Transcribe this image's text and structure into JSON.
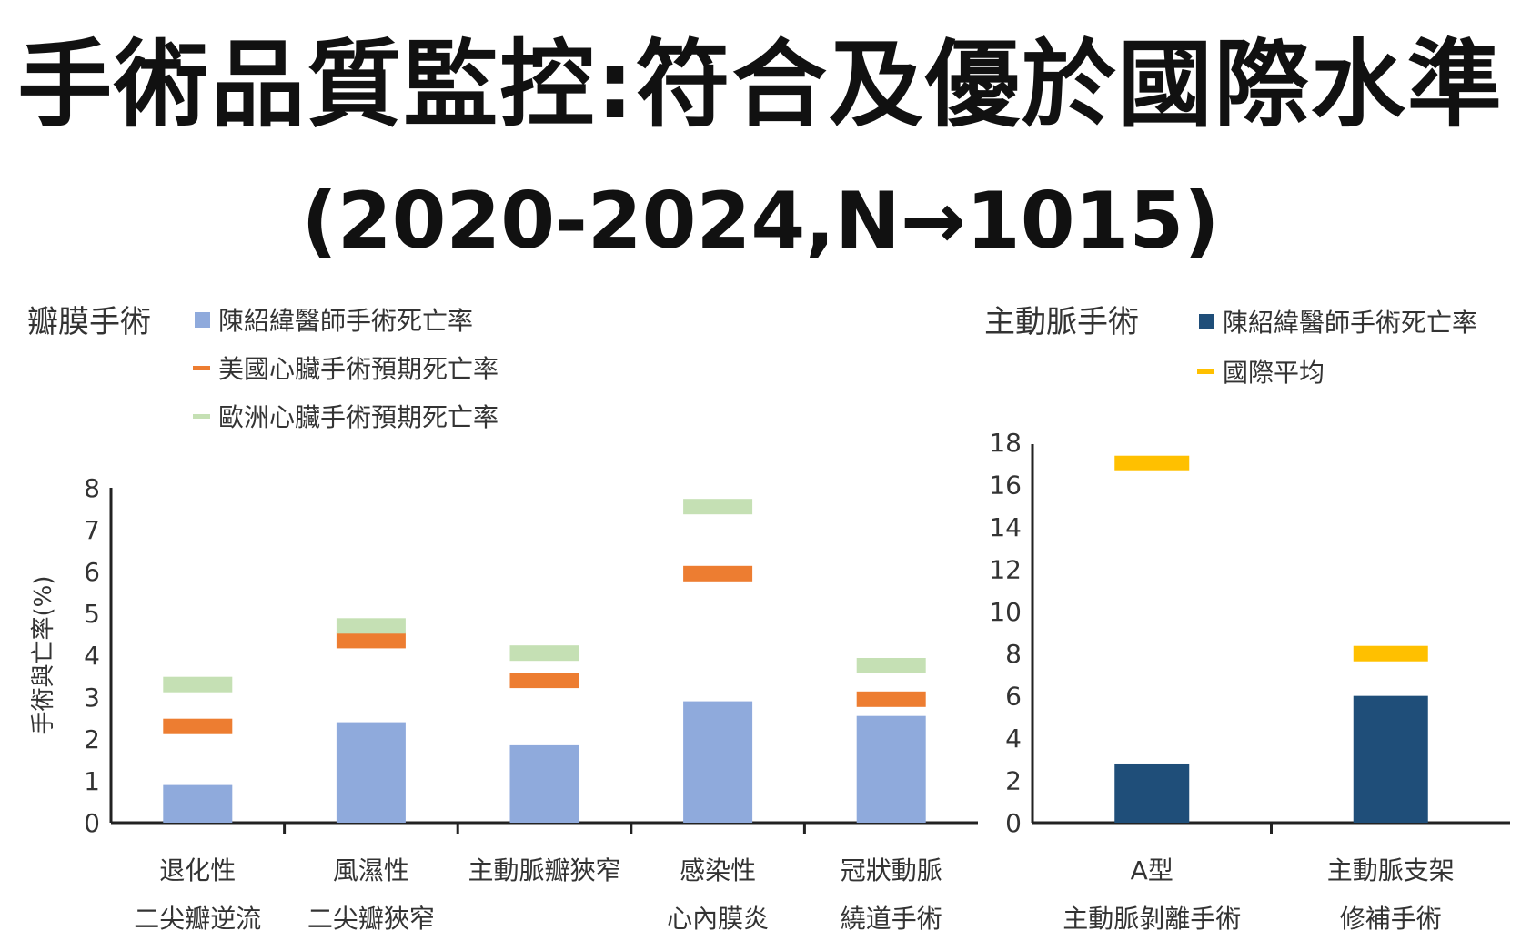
{
  "title": "手術品質監控:符合及優於國際水準",
  "subtitle": "(2020-2024,N→1015)",
  "chart_data": [
    {
      "type": "bar",
      "title": "瓣膜手術",
      "ylabel": "手術與亡率(%)",
      "ylim": [
        0,
        8
      ],
      "yticks": [
        0,
        1,
        2,
        3,
        4,
        5,
        6,
        7,
        8
      ],
      "categories": [
        [
          "退化性",
          "二尖瓣逆流"
        ],
        [
          "風濕性",
          "二尖瓣狹窄"
        ],
        [
          "主動脈瓣狹窄"
        ],
        [
          "感染性",
          "心內膜炎"
        ],
        [
          "冠狀動脈",
          "繞道手術"
        ]
      ],
      "series": [
        {
          "name": "陳紹緯醫師手術死亡率",
          "kind": "bar",
          "color": "#8faadc",
          "values": [
            0.9,
            2.4,
            1.85,
            2.9,
            2.55
          ]
        },
        {
          "name": "美國心臟手術預期死亡率",
          "kind": "marker",
          "color": "#ed7d31",
          "values": [
            2.3,
            4.35,
            3.4,
            5.95,
            2.95
          ]
        },
        {
          "name": "歐洲心臟手術預期死亡率",
          "kind": "marker",
          "color": "#c5e0b4",
          "values": [
            3.3,
            4.7,
            4.05,
            7.55,
            3.75
          ]
        }
      ],
      "legend": "top-right"
    },
    {
      "type": "bar",
      "title": "主動脈手術",
      "ylabel": "",
      "ylim": [
        0,
        18
      ],
      "yticks": [
        0,
        2,
        4,
        6,
        8,
        10,
        12,
        14,
        16,
        18
      ],
      "categories": [
        [
          "A型",
          "主動脈剝離手術"
        ],
        [
          "主動脈支架",
          "修補手術"
        ]
      ],
      "series": [
        {
          "name": "陳紹緯醫師手術死亡率",
          "kind": "bar",
          "color": "#1f4e79",
          "values": [
            2.8,
            6.0
          ]
        },
        {
          "name": "國際平均",
          "kind": "marker",
          "color": "#ffc000",
          "values": [
            17.0,
            8.0
          ]
        }
      ],
      "legend": "top-right"
    }
  ]
}
